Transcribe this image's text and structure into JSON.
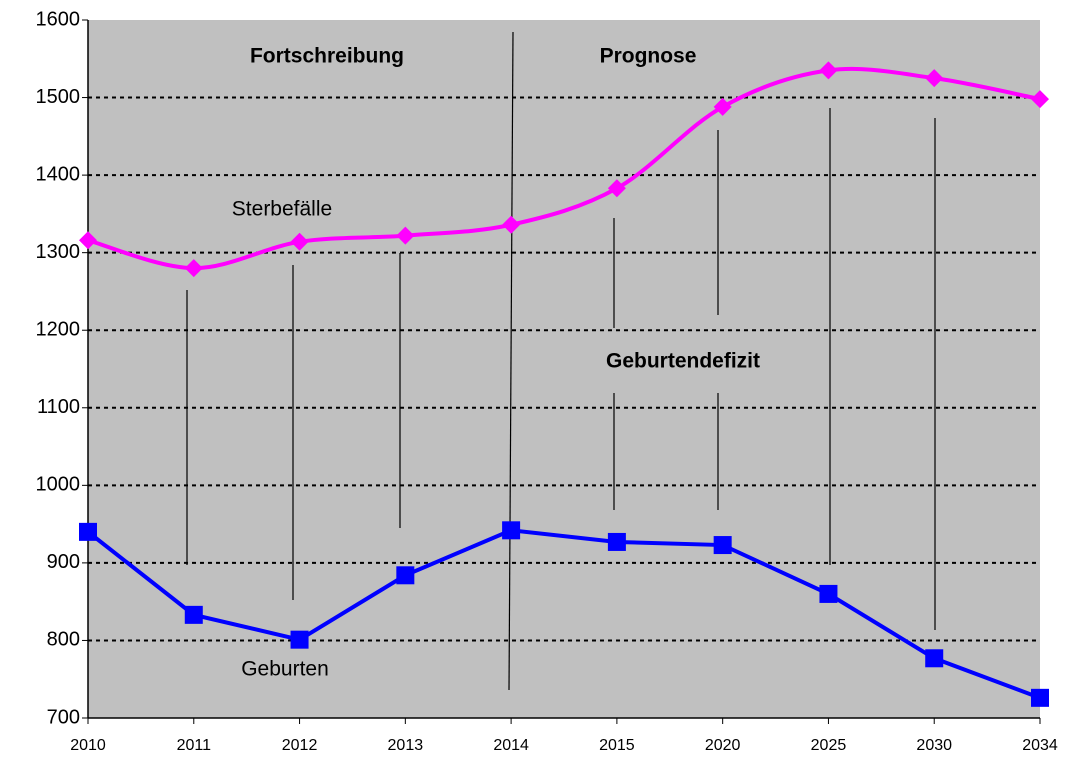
{
  "chart_data": {
    "type": "line",
    "categories": [
      "2010",
      "2011",
      "2012",
      "2013",
      "2014",
      "2015",
      "2020",
      "2025",
      "2030",
      "2034"
    ],
    "series": [
      {
        "name": "Sterbefälle",
        "color": "#ff00ff",
        "marker": "diamond",
        "smooth": true,
        "values": [
          1316,
          1280,
          1314,
          1322,
          1336,
          1383,
          1488,
          1535,
          1525,
          1498
        ]
      },
      {
        "name": "Geburten",
        "color": "#0000ff",
        "marker": "square",
        "smooth": false,
        "values": [
          940,
          833,
          801,
          884,
          942,
          927,
          923,
          860,
          777,
          726
        ]
      }
    ],
    "annotations": [
      "Fortschreibung",
      "Prognose",
      "Geburtendefizit"
    ],
    "ylim": [
      700,
      1600
    ],
    "yticks": [
      700,
      800,
      900,
      1000,
      1100,
      1200,
      1300,
      1400,
      1500,
      1600
    ],
    "grid": true
  }
}
